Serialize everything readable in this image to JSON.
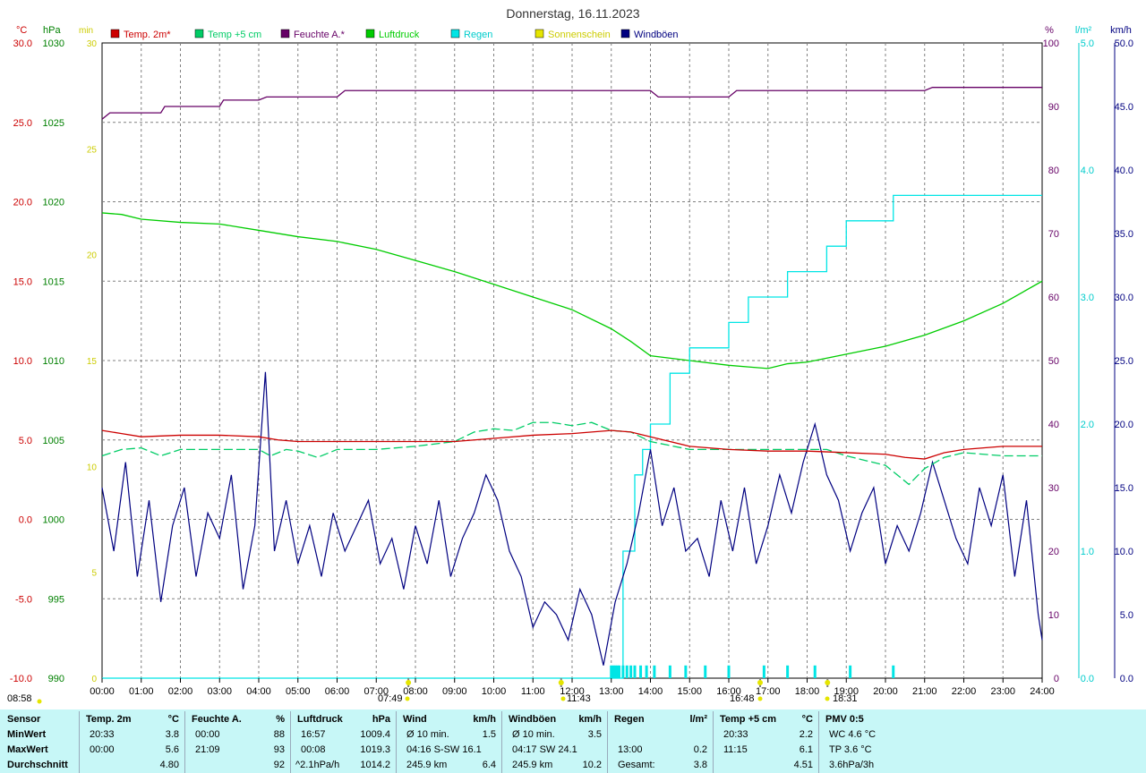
{
  "title": "Donnerstag, 16.11.2023",
  "colors": {
    "temp2m": "#cc0000",
    "temp5cm": "#00cc66",
    "humidity": "#660066",
    "pressure": "#00cc00",
    "rain": "#00e5e5",
    "sunshine": "#e5e500",
    "gusts": "#000080",
    "grid": "#808080"
  },
  "legend": [
    {
      "label": "Temp. 2m*",
      "color": "#cc0000"
    },
    {
      "label": "Temp +5 cm",
      "color": "#00cc66"
    },
    {
      "label": "Feuchte A.*",
      "color": "#660066"
    },
    {
      "label": "Luftdruck",
      "color": "#00cc00"
    },
    {
      "label": "Regen",
      "color": "#00e5e5"
    },
    {
      "label": "Sonnenschein",
      "color": "#e5e500"
    },
    {
      "label": "Windböen",
      "color": "#000080"
    }
  ],
  "axes": {
    "temp": {
      "unit": "°C",
      "ticks": [
        "30.0",
        "25.0",
        "20.0",
        "15.0",
        "10.0",
        "5.0",
        "0.0",
        "-5.0",
        "-10.0"
      ],
      "color": "#cc0000"
    },
    "pressure": {
      "unit": "hPa",
      "ticks": [
        "1030",
        "1025",
        "1020",
        "1015",
        "1010",
        "1005",
        "1000",
        "995",
        "990"
      ],
      "color": "#008000"
    },
    "sunshine": {
      "unit": "min",
      "ticks": [
        "30",
        "25",
        "20",
        "15",
        "10",
        "5",
        "0"
      ],
      "color": "#cccc00"
    },
    "humidity": {
      "unit": "%",
      "ticks": [
        "100",
        "90",
        "80",
        "70",
        "60",
        "50",
        "40",
        "30",
        "20",
        "10",
        "0"
      ],
      "color": "#660066"
    },
    "rain": {
      "unit": "l/m²",
      "ticks": [
        "5.0",
        "4.0",
        "3.0",
        "2.0",
        "1.0",
        "0.0"
      ],
      "color": "#00cccc"
    },
    "wind": {
      "unit": "km/h",
      "ticks": [
        "50.0",
        "45.0",
        "40.0",
        "35.0",
        "30.0",
        "25.0",
        "20.0",
        "15.0",
        "10.0",
        "5.0",
        "0.0"
      ],
      "color": "#000080"
    },
    "time": {
      "ticks": [
        "00:00",
        "01:00",
        "02:00",
        "03:00",
        "04:00",
        "05:00",
        "06:00",
        "07:00",
        "08:00",
        "09:00",
        "10:00",
        "11:00",
        "12:00",
        "13:00",
        "14:00",
        "15:00",
        "16:00",
        "17:00",
        "18:00",
        "19:00",
        "20:00",
        "21:00",
        "22:00",
        "23:00",
        "24:00"
      ]
    }
  },
  "markers": [
    {
      "time": "08:58",
      "label": "08:58"
    },
    {
      "time": "07:49",
      "label": "07:49"
    },
    {
      "time": "11:43",
      "label": "11:43"
    },
    {
      "time": "16:48",
      "label": "16:48"
    },
    {
      "time": "18:31",
      "label": "18:31"
    }
  ],
  "chart_data": {
    "type": "line",
    "title": "Donnerstag, 16.11.2023",
    "x_range": [
      0,
      24
    ],
    "series": [
      {
        "name": "Temp. 2m*",
        "axis": "°C",
        "ylim": [
          -10,
          30
        ],
        "x": [
          0,
          0.5,
          1,
          2,
          3,
          4,
          4.5,
          5,
          6,
          7,
          8,
          9,
          10,
          11,
          12,
          12.5,
          13,
          13.5,
          14,
          15,
          16,
          17,
          18,
          19,
          20,
          20.5,
          21,
          21.5,
          22,
          23,
          24
        ],
        "values": [
          5.6,
          5.4,
          5.2,
          5.3,
          5.3,
          5.2,
          5.0,
          4.9,
          4.9,
          4.9,
          4.9,
          4.9,
          5.1,
          5.3,
          5.4,
          5.5,
          5.6,
          5.5,
          5.2,
          4.6,
          4.4,
          4.3,
          4.3,
          4.2,
          4.1,
          3.9,
          3.8,
          4.2,
          4.4,
          4.6,
          4.6
        ]
      },
      {
        "name": "Temp +5 cm",
        "axis": "°C",
        "ylim": [
          -10,
          30
        ],
        "x": [
          0,
          0.5,
          1,
          1.5,
          2,
          3,
          4,
          4.3,
          4.7,
          5,
          5.5,
          6,
          7,
          8,
          9,
          9.5,
          10,
          10.5,
          11,
          11.5,
          12,
          12.5,
          13,
          13.5,
          14,
          15,
          16,
          17,
          18,
          18.5,
          19,
          19.5,
          20,
          20.3,
          20.6,
          21,
          21.5,
          22,
          23,
          24
        ],
        "values": [
          4.0,
          4.4,
          4.5,
          4.0,
          4.4,
          4.4,
          4.4,
          4.0,
          4.4,
          4.3,
          3.9,
          4.4,
          4.4,
          4.6,
          4.9,
          5.5,
          5.7,
          5.6,
          6.1,
          6.1,
          5.9,
          6.1,
          5.6,
          5.5,
          4.9,
          4.4,
          4.4,
          4.4,
          4.4,
          4.4,
          4.0,
          3.7,
          3.4,
          2.8,
          2.2,
          3.2,
          3.9,
          4.2,
          4.0,
          4.0
        ]
      },
      {
        "name": "Feuchte A.*",
        "axis": "%",
        "ylim": [
          0,
          100
        ],
        "x": [
          0,
          0.2,
          1.5,
          1.6,
          3,
          3.1,
          4,
          4.2,
          6,
          6.2,
          7,
          8,
          9,
          10,
          11,
          12,
          13,
          14,
          14.2,
          15,
          16,
          16.2,
          17,
          18,
          19,
          20,
          21,
          21.2,
          22,
          23,
          24
        ],
        "values": [
          88,
          89,
          89,
          90,
          90,
          91,
          91,
          91.5,
          91.5,
          92.5,
          92.5,
          92.5,
          92.5,
          92.5,
          92.5,
          92.5,
          92.5,
          92.5,
          91.5,
          91.5,
          91.5,
          92.5,
          92.5,
          92.5,
          92.5,
          92.5,
          92.5,
          93,
          93,
          93,
          93
        ]
      },
      {
        "name": "Luftdruck",
        "axis": "hPa",
        "ylim": [
          990,
          1030
        ],
        "x": [
          0,
          0.5,
          1,
          2,
          3,
          4,
          5,
          6,
          7,
          8,
          9,
          10,
          11,
          12,
          13,
          13.5,
          14,
          15,
          16,
          16.5,
          17,
          17.5,
          18,
          19,
          20,
          21,
          22,
          23,
          24
        ],
        "values": [
          1019.3,
          1019.2,
          1018.9,
          1018.7,
          1018.6,
          1018.2,
          1017.8,
          1017.5,
          1017.0,
          1016.3,
          1015.6,
          1014.8,
          1014.0,
          1013.2,
          1012.0,
          1011.2,
          1010.3,
          1010.0,
          1009.7,
          1009.6,
          1009.5,
          1009.8,
          1009.9,
          1010.4,
          1010.9,
          1011.6,
          1012.5,
          1013.6,
          1015.0
        ]
      },
      {
        "name": "Regen",
        "axis": "l/m²",
        "ylim": [
          0,
          5
        ],
        "x": [
          0,
          13.0,
          13.3,
          13.6,
          13.8,
          14.0,
          14.5,
          15.0,
          15.5,
          16.0,
          16.5,
          17.0,
          17.5,
          18.0,
          18.5,
          19.0,
          20.2,
          24
        ],
        "values": [
          0,
          0,
          1.0,
          1.6,
          1.8,
          2.0,
          2.4,
          2.6,
          2.6,
          2.8,
          3.0,
          3.0,
          3.2,
          3.2,
          3.4,
          3.6,
          3.8,
          3.8
        ]
      },
      {
        "name": "Windböen",
        "axis": "km/h",
        "ylim": [
          0,
          50
        ],
        "x": [
          0,
          0.3,
          0.6,
          0.9,
          1.2,
          1.5,
          1.8,
          2.1,
          2.4,
          2.7,
          3.0,
          3.3,
          3.6,
          3.9,
          4.17,
          4.4,
          4.7,
          5.0,
          5.3,
          5.6,
          5.9,
          6.2,
          6.5,
          6.8,
          7.1,
          7.4,
          7.7,
          8.0,
          8.3,
          8.6,
          8.9,
          9.2,
          9.5,
          9.8,
          10.1,
          10.4,
          10.7,
          11.0,
          11.3,
          11.6,
          11.9,
          12.2,
          12.5,
          12.8,
          13.1,
          13.4,
          13.7,
          14.0,
          14.3,
          14.6,
          14.9,
          15.2,
          15.5,
          15.8,
          16.1,
          16.4,
          16.7,
          17.0,
          17.3,
          17.6,
          17.9,
          18.2,
          18.5,
          18.8,
          19.1,
          19.4,
          19.7,
          20.0,
          20.3,
          20.6,
          20.9,
          21.2,
          21.5,
          21.8,
          22.1,
          22.4,
          22.7,
          23.0,
          23.3,
          23.6,
          23.9,
          24.0
        ],
        "values": [
          15,
          10,
          17,
          8,
          14,
          6,
          12,
          15,
          8,
          13,
          11,
          16,
          7,
          12,
          24.1,
          10,
          14,
          9,
          12,
          8,
          13,
          10,
          12,
          14,
          9,
          11,
          7,
          12,
          9,
          14,
          8,
          11,
          13,
          16,
          14,
          10,
          8,
          4,
          6,
          5,
          3,
          7,
          5,
          1,
          6,
          9,
          13,
          18,
          12,
          15,
          10,
          11,
          8,
          14,
          10,
          15,
          9,
          12,
          16,
          13,
          17,
          20,
          16,
          14,
          10,
          13,
          15,
          9,
          12,
          10,
          13,
          17,
          14,
          11,
          9,
          15,
          12,
          16,
          8,
          14,
          5,
          3
        ]
      }
    ],
    "rain_bars": {
      "name": "Regen",
      "x": [
        13.0,
        13.05,
        13.1,
        13.15,
        13.2,
        13.3,
        13.4,
        13.5,
        13.6,
        13.75,
        13.9,
        14.1,
        14.5,
        14.9,
        15.4,
        16.0,
        16.9,
        17.5,
        18.2,
        19.1,
        20.2
      ],
      "value": 0.6
    },
    "sunshine_markers": {
      "name": "Sonnenschein",
      "x": [
        7.82,
        11.72,
        16.8,
        18.52
      ]
    }
  },
  "summary": {
    "columns": [
      {
        "header": [
          "Sensor",
          ""
        ],
        "rows": [
          [
            "MinWert",
            ""
          ],
          [
            "MaxWert",
            ""
          ],
          [
            "Durchschnitt",
            ""
          ]
        ]
      },
      {
        "header": [
          "Temp. 2m",
          "°C"
        ],
        "rows": [
          [
            "20:33",
            "3.8"
          ],
          [
            "00:00",
            "5.6"
          ],
          [
            "",
            "4.80"
          ]
        ]
      },
      {
        "header": [
          "Feuchte A.",
          "%"
        ],
        "rows": [
          [
            "00:00",
            "88"
          ],
          [
            "21:09",
            "93"
          ],
          [
            "",
            "92"
          ]
        ]
      },
      {
        "header": [
          "Luftdruck",
          "hPa"
        ],
        "rows": [
          [
            "16:57",
            "1009.4"
          ],
          [
            "00:08",
            "1019.3"
          ],
          [
            "^2.1hPa/h",
            "1014.2"
          ]
        ]
      },
      {
        "header": [
          "Wind",
          "km/h"
        ],
        "rows": [
          [
            "Ø 10 min.",
            "1.5"
          ],
          [
            "04:16    S-SW 16.1",
            ""
          ],
          [
            "245.9 km",
            "6.4"
          ]
        ]
      },
      {
        "header": [
          "Windböen",
          "km/h"
        ],
        "rows": [
          [
            "Ø 10 min.",
            "3.5"
          ],
          [
            "04:17      SW 24.1",
            ""
          ],
          [
            "245.9 km",
            "10.2"
          ]
        ]
      },
      {
        "header": [
          "Regen",
          "l/m²"
        ],
        "rows": [
          [
            "",
            ""
          ],
          [
            "13:00",
            "0.2"
          ],
          [
            "Gesamt:",
            "3.8"
          ]
        ]
      },
      {
        "header": [
          "Temp +5 cm",
          "°C"
        ],
        "rows": [
          [
            "20:33",
            "2.2"
          ],
          [
            "11:15",
            "6.1"
          ],
          [
            "",
            "4.51"
          ]
        ]
      },
      {
        "header": [
          "PMV 0:5",
          ""
        ],
        "rows": [
          [
            "WC 4.6 °C",
            ""
          ],
          [
            "TP 3.6 °C",
            ""
          ],
          [
            "3.6hPa/3h",
            ""
          ]
        ]
      }
    ]
  }
}
